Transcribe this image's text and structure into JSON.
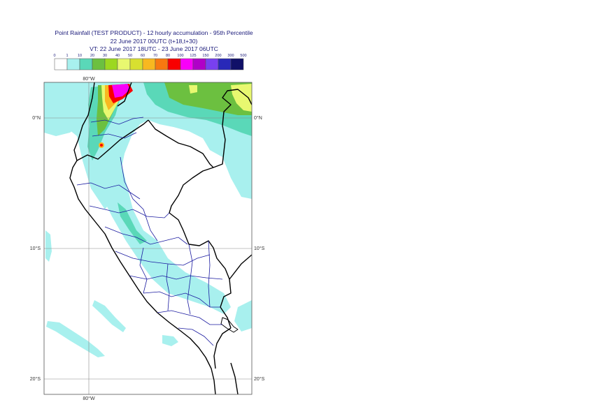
{
  "title": {
    "line1": "Point Rainfall (TEST PRODUCT) - 12 hourly accumulation - 95th Percentile",
    "line2": "22 June 2017 00UTC (t+18,t+30)",
    "line3": "VT: 22 June 2017 18UTC - 23 June 2017 06UTC"
  },
  "legend": {
    "thresholds": [
      "0",
      "1",
      "10",
      "20",
      "30",
      "40",
      "50",
      "60",
      "70",
      "80",
      "100",
      "125",
      "150",
      "200",
      "300",
      "500"
    ],
    "colors": [
      "#ffffff",
      "#a8f0ee",
      "#5ad8b8",
      "#6cc040",
      "#9cd820",
      "#e8f870",
      "#d8e030",
      "#f8b820",
      "#f87810",
      "#f80000",
      "#f800f8",
      "#b000c8",
      "#7840f0",
      "#2828b8",
      "#101068"
    ]
  },
  "map": {
    "top_lon_label": "80°W",
    "bottom_lon_label": "80°W",
    "lat_labels_left": [
      "0°N",
      "10°S",
      "20°S"
    ],
    "lat_labels_right": [
      "0°N",
      "10°S",
      "20°S"
    ],
    "colors": {
      "light": "#a8f0ee",
      "mid": "#5ad8b8",
      "green": "#6cc040",
      "yellow": "#e8f870",
      "orange": "#f8b820",
      "red": "#f80000",
      "magenta": "#f800f8",
      "coast": "#000000",
      "admin": "#1a1aa0",
      "grid": "#888888"
    }
  }
}
